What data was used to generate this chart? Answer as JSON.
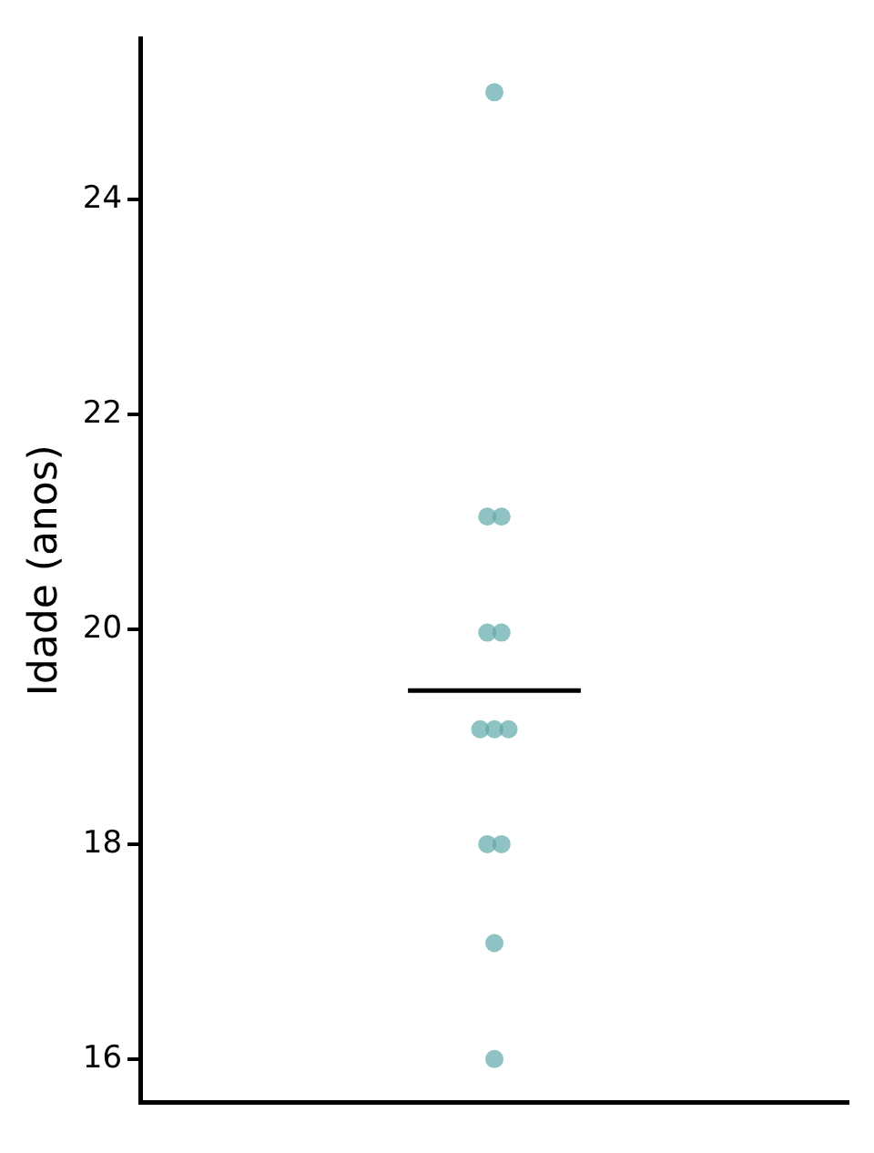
{
  "chart_data": {
    "type": "scatter",
    "ylabel": "Idade (anos)",
    "categories": [
      null
    ],
    "series": [
      {
        "color": "#5fa8aa",
        "x": [
          null,
          null,
          null,
          null,
          null,
          null,
          null,
          null,
          null,
          null,
          null,
          null
        ],
        "values": [
          25,
          21.05,
          21.05,
          19.97,
          19.97,
          19.07,
          19.07,
          19.07,
          18,
          18,
          17.08,
          16
        ]
      }
    ],
    "ref_lines": [
      {
        "axis": "y",
        "value": 19.43,
        "color": "#000000"
      }
    ],
    "ylim": [
      15.6,
      25.5
    ],
    "yticks": [
      16,
      18,
      20,
      22,
      24
    ],
    "grid": false,
    "legend": false,
    "marker": "circle",
    "tick_labels": "y"
  }
}
